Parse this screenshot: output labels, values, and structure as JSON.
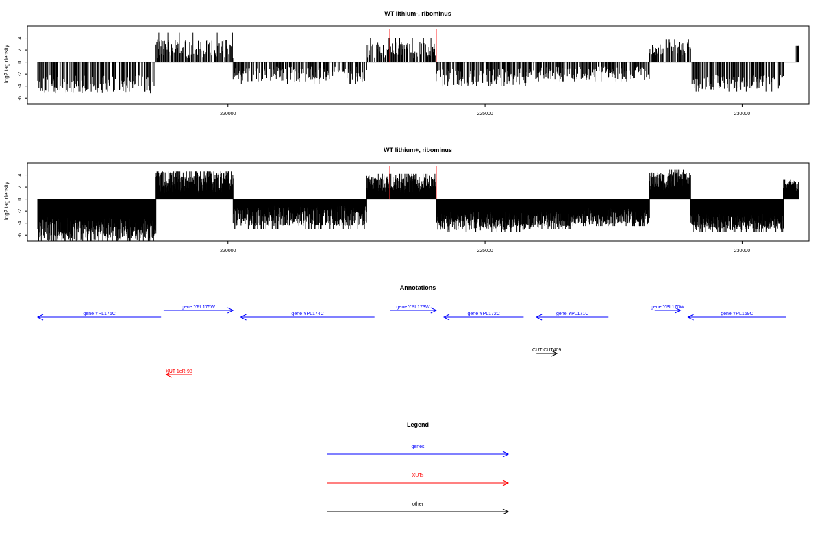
{
  "colors": {
    "gene": "#0000ff",
    "xut": "#ff0000",
    "other": "#000000",
    "marker": "#ff3030",
    "frame": "#000000"
  },
  "chart_data": [
    {
      "type": "bar",
      "title": "WT lithium-, ribominus",
      "xlabel": "",
      "ylabel": "log2 tag density",
      "xlim": [
        216100,
        231300
      ],
      "ylim": [
        -7,
        6
      ],
      "x_ticks": [
        220000,
        225000,
        230000
      ],
      "y_ticks": [
        4,
        2,
        0,
        -2,
        -4,
        -6
      ],
      "markers": [
        223150,
        224050
      ],
      "segments": [
        {
          "start": 216300,
          "end": 218600,
          "sign": -1,
          "min": 2.2,
          "max": 5.2,
          "tip": 4.9
        },
        {
          "start": 218600,
          "end": 220100,
          "sign": 1,
          "min": 0.7,
          "max": 3.8,
          "tip": 4.9
        },
        {
          "start": 220100,
          "end": 222700,
          "sign": -1,
          "min": 0.8,
          "max": 3.3,
          "tip": 3.6
        },
        {
          "start": 222700,
          "end": 224050,
          "sign": 1,
          "min": 0.7,
          "max": 3.4,
          "tip": 4.0
        },
        {
          "start": 224050,
          "end": 225800,
          "sign": -1,
          "min": 1.0,
          "max": 3.8,
          "tip": 4.0
        },
        {
          "start": 225800,
          "end": 226700,
          "sign": -1,
          "min": 0.8,
          "max": 3.0,
          "tip": 3.2
        },
        {
          "start": 226700,
          "end": 228200,
          "sign": -1,
          "min": 0.8,
          "max": 3.0,
          "tip": 3.2
        },
        {
          "start": 228200,
          "end": 229000,
          "sign": 1,
          "min": 1.0,
          "max": 3.3,
          "tip": 3.8
        },
        {
          "start": 229000,
          "end": 230800,
          "sign": -1,
          "min": 2.2,
          "max": 4.6,
          "tip": 4.9
        },
        {
          "start": 231050,
          "end": 231100,
          "sign": 1,
          "min": 2.6,
          "max": 2.8,
          "tip": 2.8
        }
      ]
    },
    {
      "type": "bar",
      "title": "WT lithium+, ribominus",
      "xlabel": "",
      "ylabel": "log2 tag density",
      "xlim": [
        216100,
        231300
      ],
      "ylim": [
        -7,
        6
      ],
      "x_ticks": [
        220000,
        225000,
        230000
      ],
      "y_ticks": [
        4,
        2,
        0,
        -2,
        -4,
        -6
      ],
      "markers": [
        223150,
        224050
      ],
      "segments": [
        {
          "start": 216300,
          "end": 218600,
          "sign": -1,
          "min": 3.0,
          "max": 6.8,
          "tip": 7.0
        },
        {
          "start": 218600,
          "end": 220100,
          "sign": 1,
          "min": 1.0,
          "max": 4.6,
          "tip": 4.6
        },
        {
          "start": 220100,
          "end": 222700,
          "sign": -1,
          "min": 1.0,
          "max": 4.5,
          "tip": 5.0
        },
        {
          "start": 222700,
          "end": 224050,
          "sign": 1,
          "min": 1.0,
          "max": 4.0,
          "tip": 4.2
        },
        {
          "start": 224050,
          "end": 225800,
          "sign": -1,
          "min": 2.0,
          "max": 5.2,
          "tip": 5.5
        },
        {
          "start": 225800,
          "end": 226700,
          "sign": -1,
          "min": 2.0,
          "max": 4.8,
          "tip": 5.0
        },
        {
          "start": 226700,
          "end": 228200,
          "sign": -1,
          "min": 1.5,
          "max": 4.2,
          "tip": 4.5
        },
        {
          "start": 228200,
          "end": 229000,
          "sign": 1,
          "min": 1.5,
          "max": 4.5,
          "tip": 4.9
        },
        {
          "start": 229000,
          "end": 230800,
          "sign": -1,
          "min": 2.5,
          "max": 5.2,
          "tip": 5.5
        },
        {
          "start": 230800,
          "end": 231100,
          "sign": 1,
          "min": 1.0,
          "max": 3.2,
          "tip": 3.2
        }
      ]
    }
  ],
  "annotations": {
    "title": "Annotations",
    "xlim": [
      216100,
      231300
    ],
    "features": [
      {
        "label": "gene YPL176C",
        "start": 216300,
        "end": 218700,
        "strand": "-",
        "kind": "gene",
        "row": 1
      },
      {
        "label": "gene YPL175W",
        "start": 218750,
        "end": 220100,
        "strand": "+",
        "kind": "gene",
        "row": 0
      },
      {
        "label": "gene YPL174C",
        "start": 220250,
        "end": 222850,
        "strand": "-",
        "kind": "gene",
        "row": 1
      },
      {
        "label": "gene YPL173W",
        "start": 223150,
        "end": 224050,
        "strand": "+",
        "kind": "gene",
        "row": 0
      },
      {
        "label": "gene YPL172C",
        "start": 224200,
        "end": 225750,
        "strand": "-",
        "kind": "gene",
        "row": 1
      },
      {
        "label": "gene YPL171C",
        "start": 226000,
        "end": 227400,
        "strand": "-",
        "kind": "gene",
        "row": 1
      },
      {
        "label": "gene YPL170W",
        "start": 228300,
        "end": 228800,
        "strand": "+",
        "kind": "gene",
        "row": 0
      },
      {
        "label": "gene YPL169C",
        "start": 228950,
        "end": 230850,
        "strand": "-",
        "kind": "gene",
        "row": 1
      },
      {
        "label": "CUT CUT409",
        "start": 226000,
        "end": 226400,
        "strand": "+",
        "kind": "other",
        "row": 2
      },
      {
        "label": "XUT 1eR-98",
        "start": 218800,
        "end": 219300,
        "strand": "-",
        "kind": "xut",
        "row": 3
      }
    ]
  },
  "legend": {
    "title": "Legend",
    "items": [
      {
        "label": "genes",
        "kind": "gene"
      },
      {
        "label": "XUTs",
        "kind": "xut"
      },
      {
        "label": "other",
        "kind": "other"
      }
    ]
  }
}
